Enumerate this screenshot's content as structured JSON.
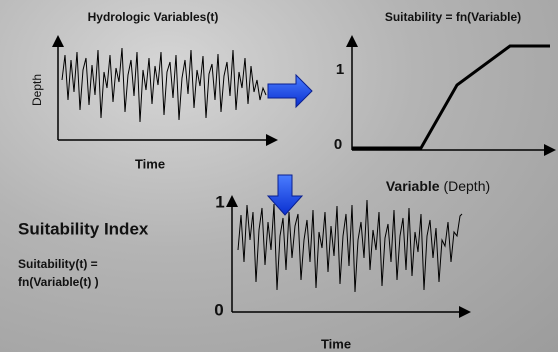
{
  "top_left": {
    "title": "Hydrologic Variables(t)",
    "y_label": "Depth",
    "x_label": "Time"
  },
  "top_right": {
    "title": "Suitability = fn(Variable)",
    "y_top": "1",
    "y_bottom": "0",
    "x_label_bold": "Variable",
    "x_label_rest": "(Depth)"
  },
  "bottom": {
    "heading": "Suitability Index",
    "formula_line1": "Suitability(t) =",
    "formula_line2": "fn(Variable(t) )",
    "y_top": "1",
    "y_bottom": "0",
    "x_label": "Time"
  }
}
